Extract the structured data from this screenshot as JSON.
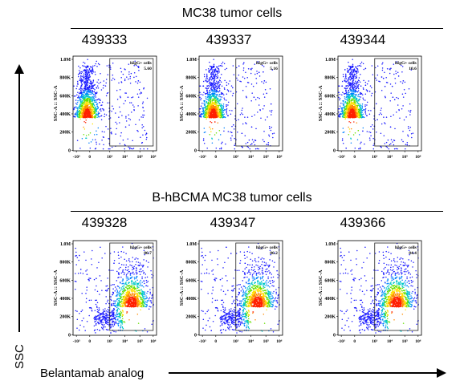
{
  "groups": [
    {
      "title": "MC38 tumor cells",
      "plots": [
        {
          "sample": "439333",
          "gate_label": "hIgG+ cells",
          "gate_percent": "5.60"
        },
        {
          "sample": "439337",
          "gate_label": "hIgG+ cells",
          "gate_percent": "5.16"
        },
        {
          "sample": "439344",
          "gate_label": "hIgG+ cells",
          "gate_percent": "10.6"
        }
      ]
    },
    {
      "title": "B-hBCMA MC38 tumor cells",
      "plots": [
        {
          "sample": "439328",
          "gate_label": "hIgG+ cells",
          "gate_percent": "86.7"
        },
        {
          "sample": "439347",
          "gate_label": "hIgG+ cells",
          "gate_percent": "86.2"
        },
        {
          "sample": "439366",
          "gate_label": "hIgG+ cells",
          "gate_percent": "84.4"
        }
      ]
    }
  ],
  "axes": {
    "y_axis_title": "SSC",
    "x_axis_title": "Belantamab analog",
    "plot_y_label": "SSC-A :: SSC-A",
    "y_ticks": [
      "1.0M",
      "800K",
      "600K",
      "400K",
      "200K",
      "0"
    ],
    "x_ticks": [
      "-10³",
      "0",
      "10³",
      "10⁴",
      "10⁵",
      "10⁶"
    ]
  },
  "chart_data": {
    "type": "scatter",
    "subtype": "flow cytometry density dot plots",
    "panels": [
      {
        "group": "MC38 tumor cells",
        "sample": "439333",
        "gate": "hIgG+ cells",
        "percent_positive": 5.6
      },
      {
        "group": "MC38 tumor cells",
        "sample": "439337",
        "gate": "hIgG+ cells",
        "percent_positive": 5.16
      },
      {
        "group": "MC38 tumor cells",
        "sample": "439344",
        "gate": "hIgG+ cells",
        "percent_positive": 10.6
      },
      {
        "group": "B-hBCMA MC38 tumor cells",
        "sample": "439328",
        "gate": "hIgG+ cells",
        "percent_positive": 86.7
      },
      {
        "group": "B-hBCMA MC38 tumor cells",
        "sample": "439347",
        "gate": "hIgG+ cells",
        "percent_positive": 86.2
      },
      {
        "group": "B-hBCMA MC38 tumor cells",
        "sample": "439366",
        "gate": "hIgG+ cells",
        "percent_positive": 84.4
      }
    ],
    "xlabel": "Belantamab analog",
    "ylabel": "SSC",
    "x_scale": "biexponential",
    "ylim": [
      0,
      1000000
    ],
    "colors": {
      "low": "#1a1aff",
      "mid": "#00c8c8",
      "high": "#ffe000",
      "peak": "#ff2000"
    }
  }
}
